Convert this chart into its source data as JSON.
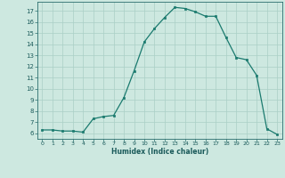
{
  "x": [
    0,
    1,
    2,
    3,
    4,
    5,
    6,
    7,
    8,
    9,
    10,
    11,
    12,
    13,
    14,
    15,
    16,
    17,
    18,
    19,
    20,
    21,
    22,
    23
  ],
  "y": [
    6.3,
    6.3,
    6.2,
    6.2,
    6.1,
    7.3,
    7.5,
    7.6,
    9.2,
    11.6,
    14.2,
    15.4,
    16.4,
    17.3,
    17.2,
    16.9,
    16.5,
    16.5,
    14.6,
    12.8,
    12.6,
    11.2,
    6.4,
    5.9
  ],
  "line_color": "#1a7a6e",
  "bg_color": "#cde8e0",
  "grid_color": "#aacfc6",
  "axis_color": "#2a6e6e",
  "text_color": "#1a5a5a",
  "xlabel": "Humidex (Indice chaleur)",
  "ylim_min": 5.5,
  "ylim_max": 17.8,
  "xlim_min": -0.5,
  "xlim_max": 23.5,
  "yticks": [
    6,
    7,
    8,
    9,
    10,
    11,
    12,
    13,
    14,
    15,
    16,
    17
  ],
  "xticks": [
    0,
    1,
    2,
    3,
    4,
    5,
    6,
    7,
    8,
    9,
    10,
    11,
    12,
    13,
    14,
    15,
    16,
    17,
    18,
    19,
    20,
    21,
    22,
    23
  ]
}
